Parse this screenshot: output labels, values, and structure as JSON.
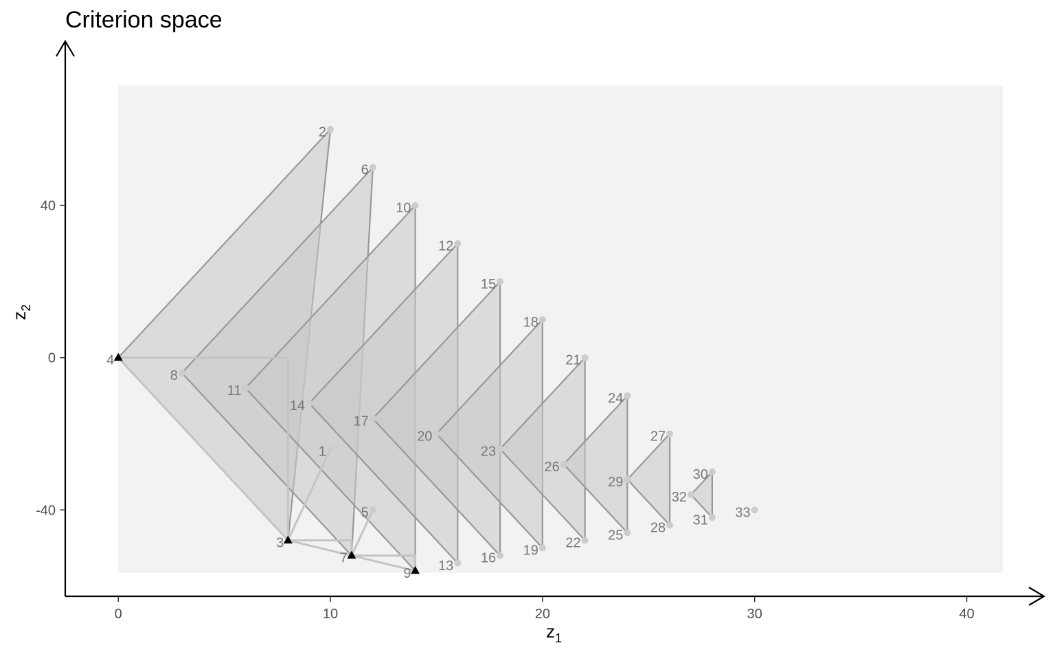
{
  "chart_data": {
    "type": "scatter",
    "title": "Criterion space",
    "xlabel": "z",
    "xlabel_sub": "1",
    "ylabel": "z",
    "ylabel_sub": "2",
    "xlim": [
      -2.5,
      41.7
    ],
    "ylim": [
      -62.7,
      76.3
    ],
    "xticks": [
      0,
      10,
      20,
      30,
      40
    ],
    "yticks": [
      -40,
      0,
      40
    ],
    "grid": false,
    "feasible_region": {
      "x": [
        0,
        41.7
      ],
      "y": [
        -56.5,
        71.5
      ]
    },
    "colors": {
      "region": "#f2f2f2",
      "cone_fill": "#c8c8c8",
      "cone_stroke": "#999999",
      "hull_stroke": "#c4c4c4",
      "point": "#cccccc",
      "nondominated": "#000000",
      "label": "#777777",
      "tick_label": "#4d4d4d"
    },
    "points": [
      {
        "id": 1,
        "x": 10,
        "y": -24,
        "nd": false
      },
      {
        "id": 2,
        "x": 10,
        "y": 60,
        "nd": false
      },
      {
        "id": 3,
        "x": 8,
        "y": -48,
        "nd": true
      },
      {
        "id": 4,
        "x": 0,
        "y": 0,
        "nd": true
      },
      {
        "id": 5,
        "x": 12,
        "y": -40,
        "nd": false
      },
      {
        "id": 6,
        "x": 12,
        "y": 50,
        "nd": false
      },
      {
        "id": 7,
        "x": 11,
        "y": -52,
        "nd": true
      },
      {
        "id": 8,
        "x": 3,
        "y": -4,
        "nd": false
      },
      {
        "id": 9,
        "x": 14,
        "y": -56,
        "nd": true
      },
      {
        "id": 10,
        "x": 14,
        "y": 40,
        "nd": false
      },
      {
        "id": 11,
        "x": 6,
        "y": -8,
        "nd": false
      },
      {
        "id": 12,
        "x": 16,
        "y": 30,
        "nd": false
      },
      {
        "id": 13,
        "x": 16,
        "y": -54,
        "nd": false
      },
      {
        "id": 14,
        "x": 9,
        "y": -12,
        "nd": false
      },
      {
        "id": 15,
        "x": 18,
        "y": 20,
        "nd": false
      },
      {
        "id": 16,
        "x": 18,
        "y": -52,
        "nd": false
      },
      {
        "id": 17,
        "x": 12,
        "y": -16,
        "nd": false
      },
      {
        "id": 18,
        "x": 20,
        "y": 10,
        "nd": false
      },
      {
        "id": 19,
        "x": 20,
        "y": -50,
        "nd": false
      },
      {
        "id": 20,
        "x": 15,
        "y": -20,
        "nd": false
      },
      {
        "id": 21,
        "x": 22,
        "y": 0,
        "nd": false
      },
      {
        "id": 22,
        "x": 22,
        "y": -48,
        "nd": false
      },
      {
        "id": 23,
        "x": 18,
        "y": -24,
        "nd": false
      },
      {
        "id": 24,
        "x": 24,
        "y": -10,
        "nd": false
      },
      {
        "id": 25,
        "x": 24,
        "y": -46,
        "nd": false
      },
      {
        "id": 26,
        "x": 21,
        "y": -28,
        "nd": false
      },
      {
        "id": 27,
        "x": 26,
        "y": -20,
        "nd": false
      },
      {
        "id": 28,
        "x": 26,
        "y": -44,
        "nd": false
      },
      {
        "id": 29,
        "x": 24,
        "y": -32,
        "nd": false
      },
      {
        "id": 30,
        "x": 28,
        "y": -30,
        "nd": false
      },
      {
        "id": 31,
        "x": 28,
        "y": -42,
        "nd": false
      },
      {
        "id": 32,
        "x": 27,
        "y": -36,
        "nd": false
      },
      {
        "id": 33,
        "x": 30,
        "y": -40,
        "nd": false
      }
    ],
    "cones": [
      [
        4,
        2,
        3
      ],
      [
        8,
        6,
        7
      ],
      [
        11,
        10,
        9
      ],
      [
        14,
        12,
        13
      ],
      [
        17,
        15,
        16
      ],
      [
        20,
        18,
        19
      ],
      [
        23,
        21,
        22
      ],
      [
        26,
        24,
        25
      ],
      [
        29,
        27,
        28
      ],
      [
        32,
        30,
        31
      ]
    ],
    "hull_lines": [
      [
        [
          0,
          0
        ],
        [
          8,
          0
        ],
        [
          8,
          -48
        ],
        [
          10,
          -24
        ]
      ],
      [
        [
          8,
          -48
        ],
        [
          11,
          -48
        ],
        [
          11,
          -52
        ],
        [
          12,
          -40
        ]
      ],
      [
        [
          11,
          -52
        ],
        [
          14,
          -52
        ],
        [
          14,
          -56
        ]
      ],
      [
        [
          0,
          0
        ],
        [
          8,
          -48
        ],
        [
          11,
          -52
        ],
        [
          14,
          -56
        ]
      ]
    ]
  }
}
